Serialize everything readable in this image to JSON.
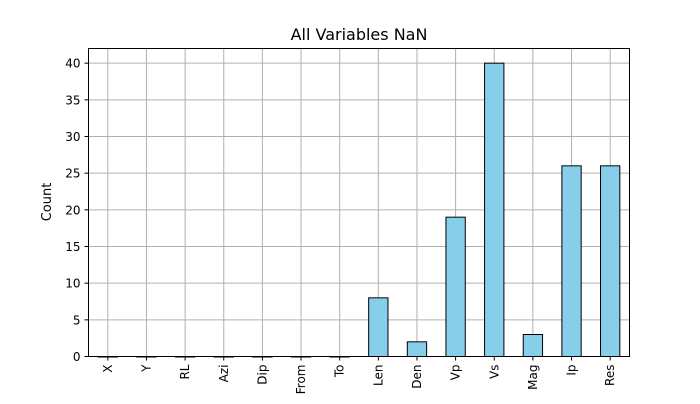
{
  "chart_data": {
    "type": "bar",
    "title": "All Variables NaN",
    "xlabel": "",
    "ylabel": "Count",
    "categories": [
      "X",
      "Y",
      "RL",
      "Azi",
      "Dip",
      "From",
      "To",
      "Len",
      "Den",
      "Vp",
      "Vs",
      "Mag",
      "Ip",
      "Res"
    ],
    "values": [
      0,
      0,
      0,
      0,
      0,
      0,
      0,
      8,
      2,
      19,
      40,
      3,
      26,
      26
    ],
    "ylim": [
      0,
      42
    ],
    "yticks": [
      0,
      5,
      10,
      15,
      20,
      25,
      30,
      35,
      40
    ],
    "grid": true,
    "legend": false,
    "colors": {
      "bar_fill": "#87ceeb",
      "bar_edge": "#000000",
      "grid": "#b0b0b0",
      "axes": "#000000"
    }
  }
}
